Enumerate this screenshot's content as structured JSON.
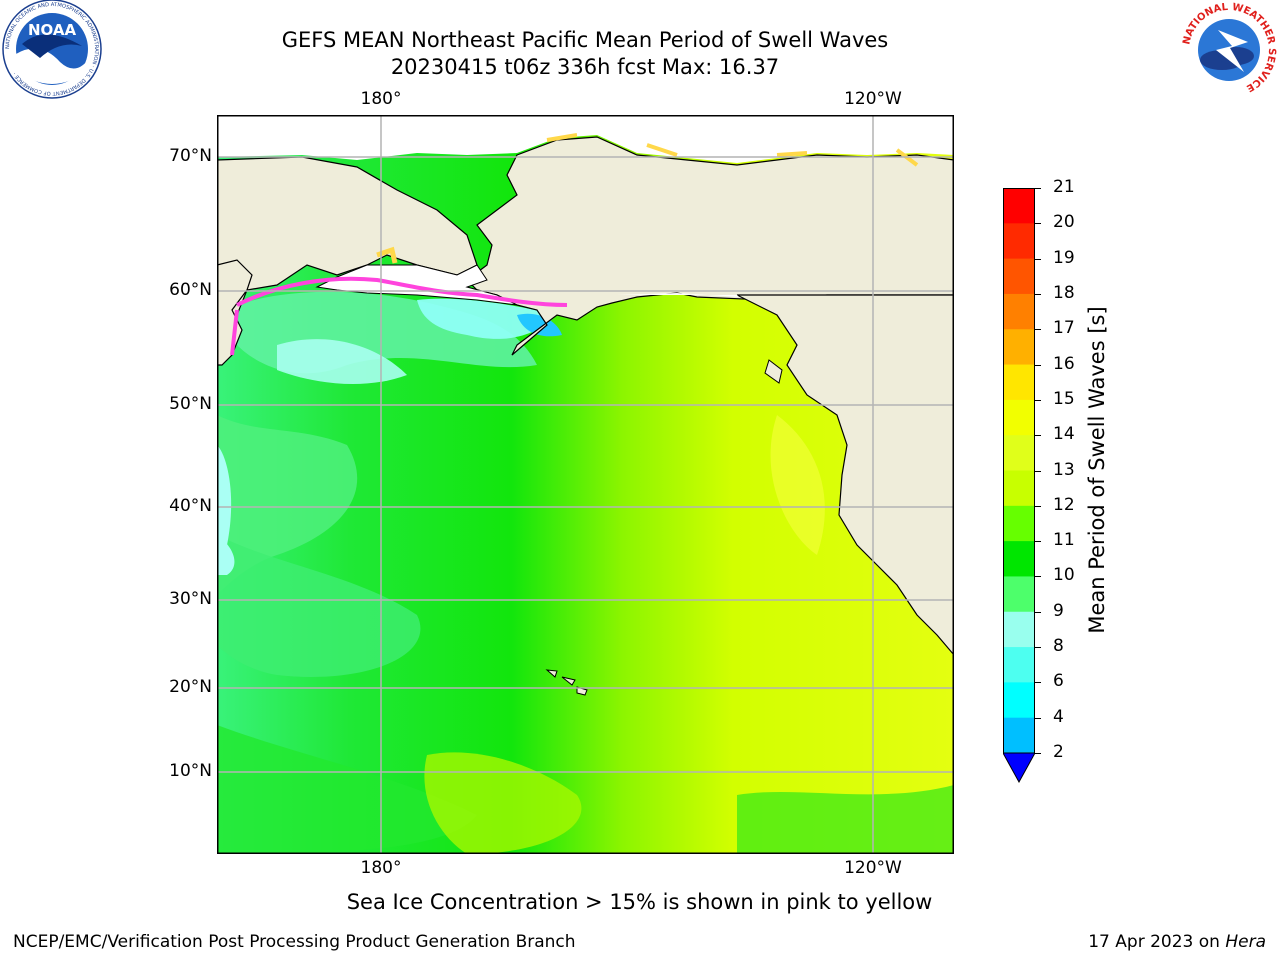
{
  "title_line1": "GEFS MEAN Northeast Pacific Mean Period of Swell Waves",
  "title_line2": "20230415 t06z 336h fcst   Max: 16.37",
  "logos": {
    "noaa": {
      "text": "NOAA",
      "ring_text": "NATIONAL OCEANIC AND ATMOSPHERIC ADMINISTRATION · U.S. DEPARTMENT OF COMMERCE ·"
    },
    "nws": {
      "ring_text": "NATIONAL WEATHER SERVICE"
    }
  },
  "map": {
    "lon_labels_top": [
      "180°",
      "120°W"
    ],
    "lon_labels_bottom": [
      "180°",
      "120°W"
    ],
    "lat_labels": [
      "70°N",
      "60°N",
      "50°N",
      "40°N",
      "30°N",
      "20°N",
      "10°N"
    ],
    "colors": {
      "land": "#efedda",
      "ice_pink": "#ff44dd",
      "ice_yellow": "#ffd84a"
    }
  },
  "colorbar": {
    "label": "Mean Period of Swell Waves [s]",
    "ticks": [
      "21",
      "20",
      "19",
      "18",
      "17",
      "16",
      "15",
      "14",
      "13",
      "12",
      "11",
      "10",
      "9",
      "8",
      "6",
      "4",
      "2"
    ],
    "colors": [
      "#ff0000",
      "#ff2a00",
      "#ff5500",
      "#ff8000",
      "#ffb000",
      "#ffe600",
      "#f2ff00",
      "#e0ff1a",
      "#c8ff00",
      "#66ff00",
      "#00e600",
      "#4dff6b",
      "#99ffee",
      "#4dfff0",
      "#00ffff",
      "#00bfff",
      "#0066ff"
    ],
    "extend_color": "#0000ff"
  },
  "caption": "Sea Ice Concentration > 15% is shown in pink to yellow",
  "footer_left": "NCEP/EMC/Verification Post Processing Product Generation Branch",
  "footer_right_date": "17 Apr 2023 on ",
  "footer_right_host": "Hera"
}
